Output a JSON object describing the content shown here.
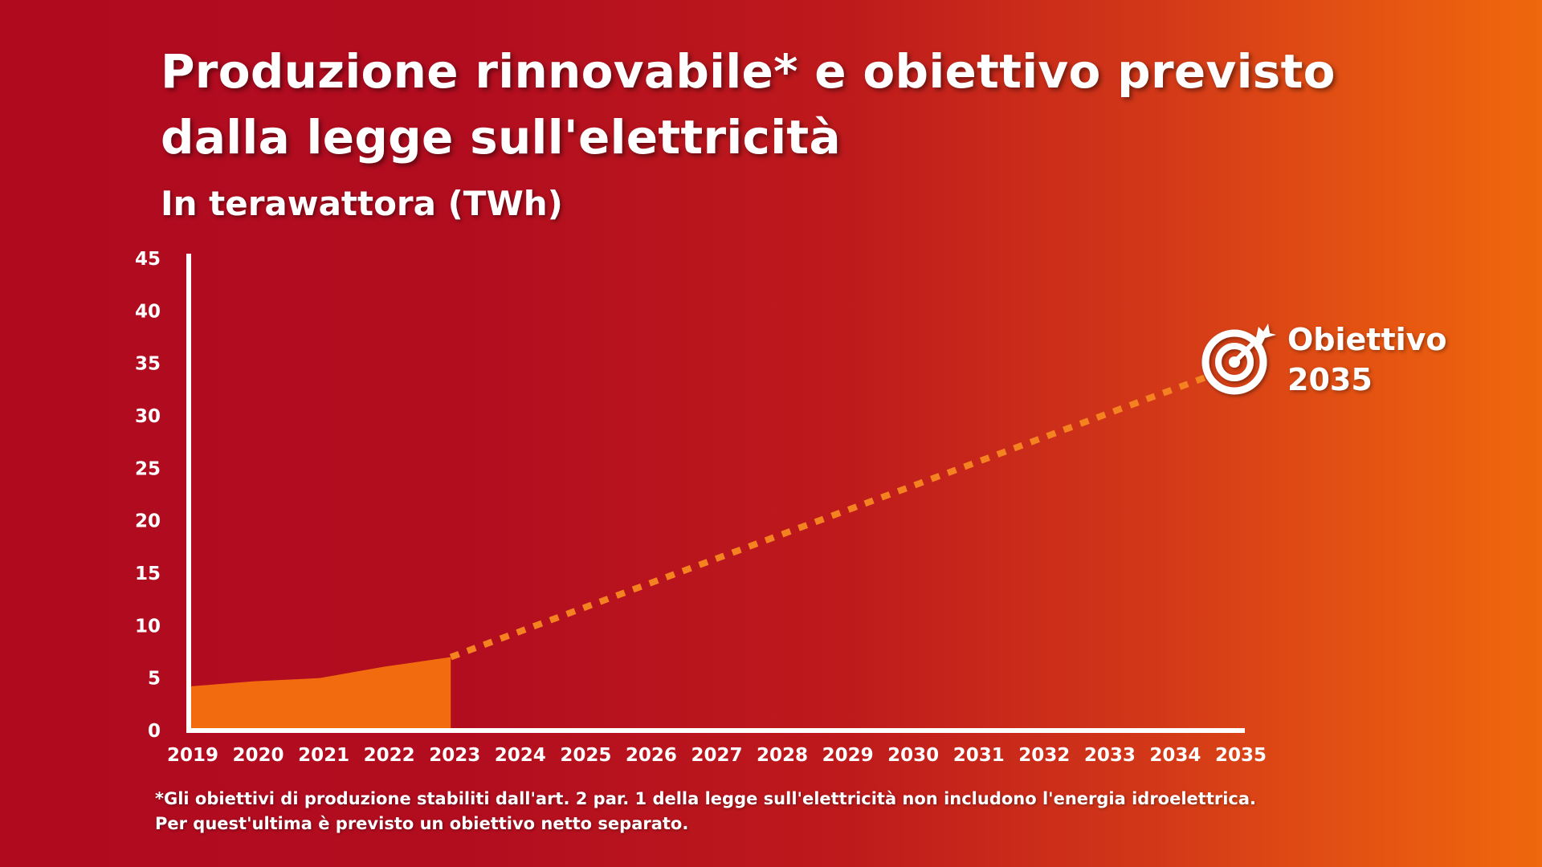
{
  "header": {
    "title": "Produzione rinnovabile* e obiettivo previsto dalla legge sull'elettricità",
    "subtitle": "In terawattora (TWh)"
  },
  "target": {
    "label_line1": "Obiettivo",
    "label_line2": "2035",
    "icon": "target-with-arrow-icon"
  },
  "footnote": "*Gli obiettivi di produzione stabiliti dall'art. 2 par. 1 della legge sull'elettricità non includono l'energia idroelettrica. Per quest'ultima è previsto un obiettivo netto separato.",
  "colors": {
    "background_left": "#b00a1f",
    "background_right": "#ef680c",
    "area_fill": "#f26b0f",
    "target_line": "#f58220",
    "axis": "#ffffff"
  },
  "chart_data": {
    "type": "area",
    "title": "Produzione rinnovabile* e obiettivo previsto dalla legge sull'elettricità",
    "subtitle": "In terawattora (TWh)",
    "xlabel": "",
    "ylabel": "",
    "ylim": [
      0,
      45
    ],
    "yticks": [
      0,
      5,
      10,
      15,
      20,
      25,
      30,
      35,
      40,
      45
    ],
    "x": [
      2019,
      2020,
      2021,
      2022,
      2023,
      2024,
      2025,
      2026,
      2027,
      2028,
      2029,
      2030,
      2031,
      2032,
      2033,
      2034,
      2035
    ],
    "grid": false,
    "legend": "none",
    "series": [
      {
        "kind": "area",
        "x": [
          2019,
          2020,
          2021,
          2022,
          2023
        ],
        "values": [
          4.2,
          4.7,
          5.0,
          6.1,
          7.0
        ]
      },
      {
        "kind": "dashed-line",
        "x": [
          2023,
          2035
        ],
        "values": [
          7.0,
          34.0
        ]
      }
    ]
  }
}
